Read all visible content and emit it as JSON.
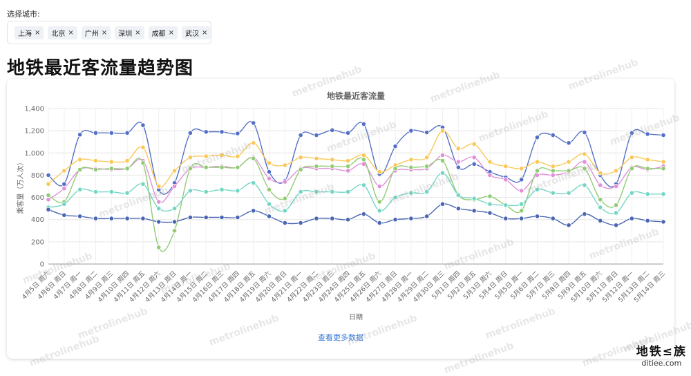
{
  "city_select": {
    "label": "选择城市:",
    "tags": [
      "上海",
      "北京",
      "广州",
      "深圳",
      "成都",
      "武汉"
    ],
    "remove_glyph": "×"
  },
  "page_title": "地铁最近客流量趋势图",
  "more_link": "查看更多数据",
  "watermark_text": "metrolinehub",
  "site_logo": {
    "line1": "地铁≤族",
    "line2": "ditiee.com"
  },
  "chart_data": {
    "type": "line",
    "title": "地铁最近客流量",
    "xlabel": "日期",
    "ylabel": "乘客量（万人次）",
    "ylim": [
      0,
      1400
    ],
    "yticks": [
      0,
      200,
      400,
      600,
      800,
      1000,
      1200,
      1400
    ],
    "grid": true,
    "categories": [
      "4月5日 周六",
      "4月6日 周日",
      "4月7日 周一",
      "4月8日 周二",
      "4月9日 周三",
      "4月10日 周四",
      "4月11日 周五",
      "4月12日 周六",
      "4月13日 周日",
      "4月14日 周一",
      "4月15日 周二",
      "4月16日 周三",
      "4月17日 周四",
      "4月18日 周五",
      "4月19日 周六",
      "4月20日 周日",
      "4月21日 周一",
      "4月22日 周二",
      "4月23日 周三",
      "4月24日 周四",
      "4月25日 周五",
      "4月26日 周六",
      "4月27日 周日",
      "4月28日 周一",
      "4月29日 周二",
      "4月30日 周三",
      "5月1日 周四",
      "5月2日 周五",
      "5月3日 周六",
      "5月4日 周日",
      "5月5日 周一",
      "5月6日 周二",
      "5月7日 周三",
      "5月8日 周四",
      "5月9日 周五",
      "5月10日 周六",
      "5月11日 周日",
      "5月12日 周一",
      "5月13日 周二",
      "5月14日 周三"
    ],
    "series": [
      {
        "color": "#5470c6",
        "values": [
          800,
          720,
          1165,
          1180,
          1180,
          1180,
          1250,
          670,
          730,
          1180,
          1190,
          1190,
          1175,
          1270,
          830,
          750,
          1160,
          1160,
          1205,
          1180,
          1260,
          810,
          1060,
          1200,
          1185,
          1230,
          870,
          900,
          830,
          780,
          760,
          1140,
          1160,
          1090,
          1185,
          800,
          720,
          1180,
          1170,
          1160
        ]
      },
      {
        "color": "#fac858",
        "values": [
          720,
          840,
          940,
          930,
          920,
          930,
          1050,
          700,
          840,
          960,
          970,
          980,
          970,
          1090,
          910,
          890,
          960,
          950,
          940,
          930,
          980,
          830,
          890,
          940,
          960,
          1200,
          1040,
          1080,
          920,
          880,
          860,
          920,
          880,
          920,
          990,
          820,
          840,
          960,
          940,
          920
        ]
      },
      {
        "color": "#e090d8",
        "values": [
          580,
          680,
          850,
          860,
          850,
          860,
          930,
          560,
          700,
          860,
          870,
          880,
          870,
          960,
          770,
          740,
          860,
          860,
          860,
          840,
          900,
          700,
          840,
          850,
          860,
          980,
          920,
          960,
          800,
          760,
          660,
          800,
          800,
          830,
          920,
          710,
          700,
          870,
          850,
          880
        ]
      },
      {
        "color": "#91cc75",
        "values": [
          620,
          560,
          850,
          850,
          860,
          860,
          910,
          150,
          300,
          860,
          870,
          870,
          870,
          950,
          670,
          590,
          850,
          880,
          880,
          880,
          940,
          560,
          860,
          870,
          880,
          930,
          620,
          580,
          610,
          530,
          480,
          840,
          840,
          840,
          860,
          580,
          530,
          860,
          860,
          860
        ]
      },
      {
        "color": "#73d6c5",
        "values": [
          510,
          540,
          670,
          650,
          650,
          640,
          720,
          500,
          500,
          660,
          650,
          670,
          660,
          730,
          540,
          480,
          650,
          650,
          650,
          650,
          710,
          480,
          600,
          640,
          650,
          820,
          620,
          590,
          540,
          530,
          540,
          670,
          640,
          640,
          710,
          510,
          460,
          640,
          630,
          630
        ]
      },
      {
        "color": "#4a66b3",
        "values": [
          490,
          440,
          430,
          410,
          410,
          410,
          410,
          380,
          380,
          420,
          420,
          420,
          420,
          480,
          430,
          370,
          370,
          410,
          410,
          400,
          450,
          370,
          400,
          410,
          430,
          540,
          500,
          480,
          460,
          410,
          410,
          430,
          410,
          350,
          450,
          390,
          350,
          410,
          390,
          380
        ]
      }
    ]
  }
}
